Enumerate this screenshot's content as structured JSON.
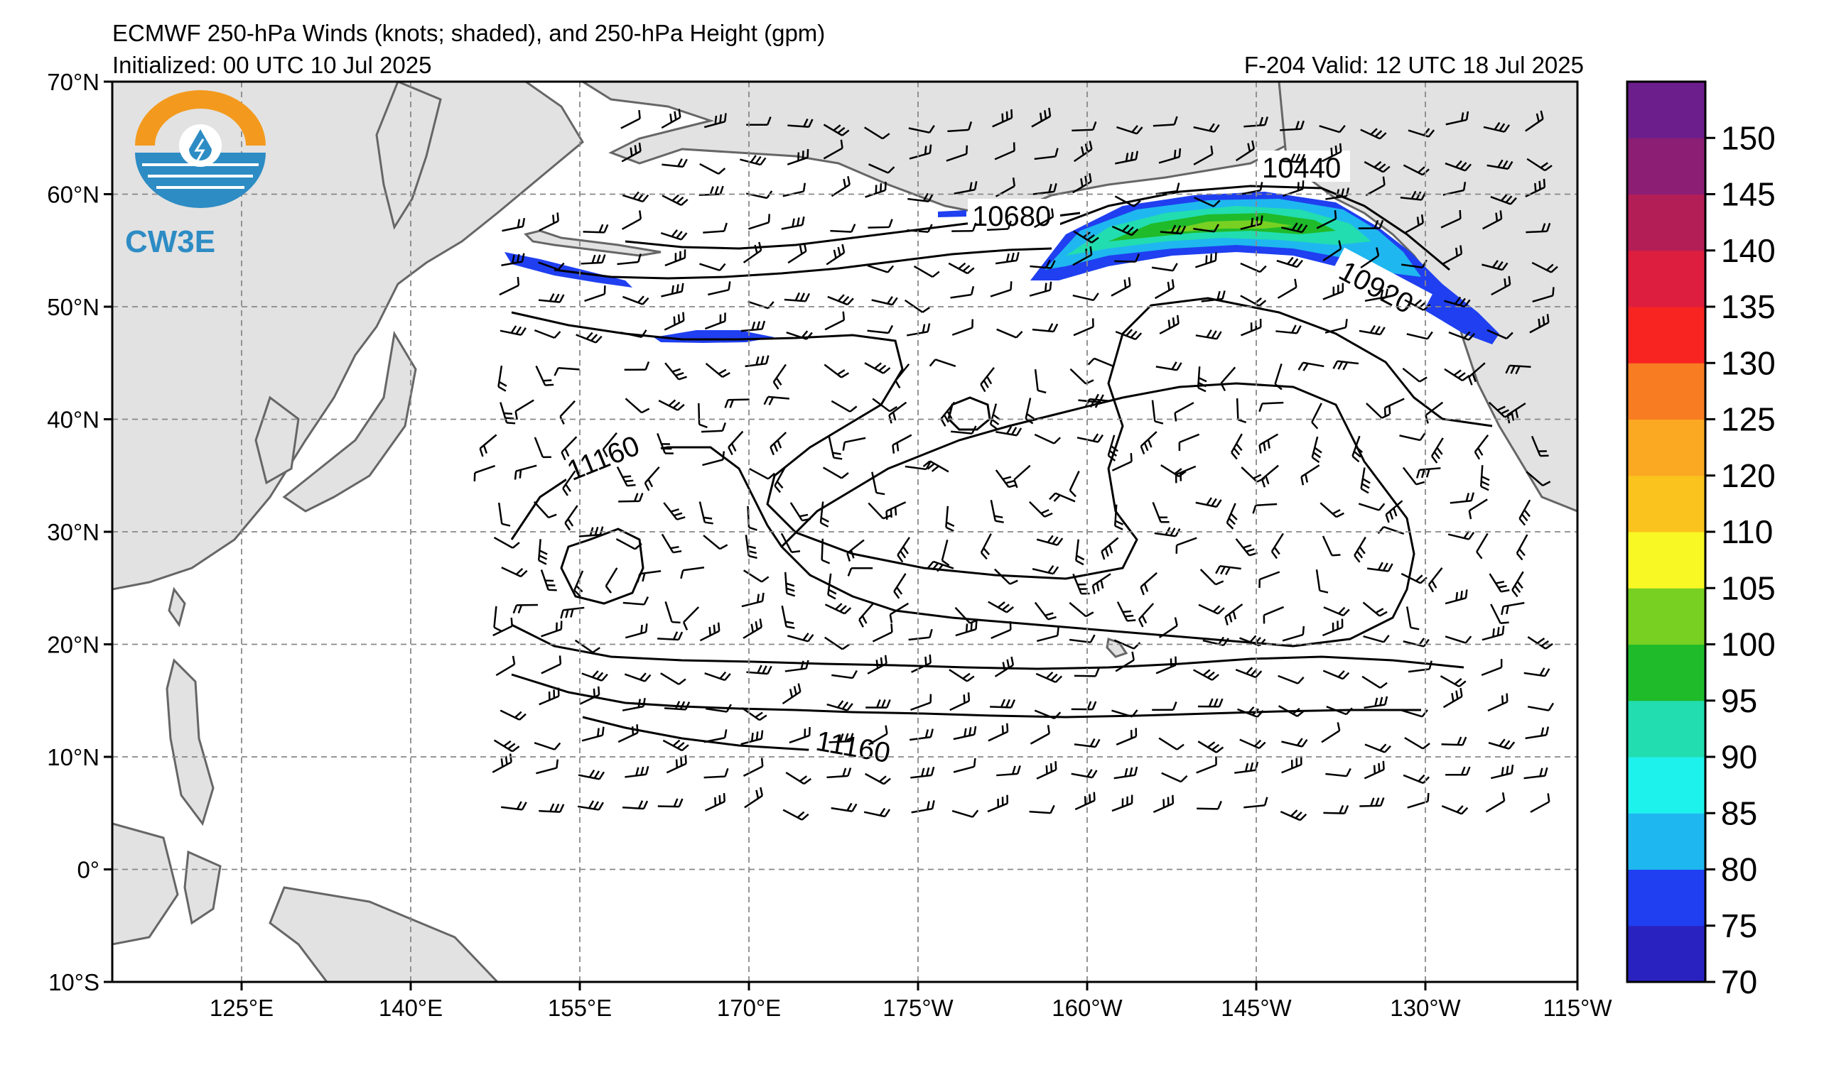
{
  "header": {
    "title": "ECMWF 250-hPa Winds (knots; shaded), and 250-hPa Height (gpm)",
    "initialized": "Initialized: 00 UTC 10 Jul 2025",
    "valid": "F-204  Valid: 12 UTC 18 Jul 2025"
  },
  "logo": {
    "text": "CW3E"
  },
  "map": {
    "lat_labels": [
      "70°N",
      "60°N",
      "50°N",
      "40°N",
      "30°N",
      "20°N",
      "10°N",
      "0°",
      "10°S"
    ],
    "lon_labels": [
      "125°E",
      "140°E",
      "155°E",
      "170°E",
      "175°W",
      "160°W",
      "145°W",
      "130°W",
      "115°W"
    ],
    "contour_labels": [
      "10440",
      "10680",
      "10920",
      "11160",
      "11160"
    ]
  },
  "colorbar": {
    "labels": [
      "70",
      "75",
      "80",
      "85",
      "90",
      "95",
      "100",
      "105",
      "110",
      "120",
      "125",
      "130",
      "135",
      "140",
      "145",
      "150"
    ],
    "colors": [
      "#2a22c0",
      "#1f3ff0",
      "#1fb7f0",
      "#1ef2ec",
      "#22ddb0",
      "#20bb2a",
      "#77d022",
      "#f8f824",
      "#fbc31e",
      "#fba822",
      "#f87c22",
      "#f82422",
      "#dd1e3e",
      "#b41e56",
      "#8c1e74",
      "#6c1e8c"
    ]
  },
  "colors": {
    "land": "#e2e2e2",
    "coast": "#666666",
    "grid": "#888888",
    "logo_orange": "#f39a1e",
    "logo_blue": "#2d8cc4"
  }
}
